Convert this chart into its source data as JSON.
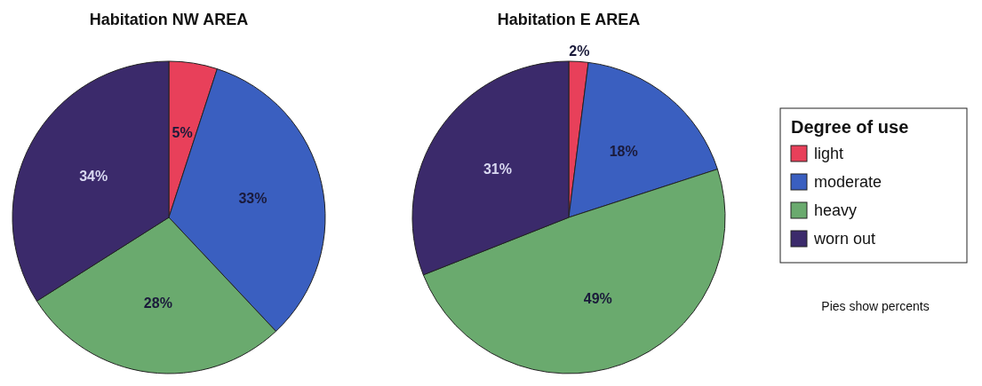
{
  "chart_data": [
    {
      "type": "pie",
      "title": "Habitation NW AREA",
      "categories": [
        null,
        null,
        null,
        null
      ],
      "values": [
        5,
        33,
        28,
        34
      ],
      "colors": [
        "#e8405a",
        "#3a5fc0",
        "#6aaa6e",
        "#3b2a6b"
      ],
      "value_labels": [
        "5%",
        "33%",
        "28%",
        "34%"
      ]
    },
    {
      "type": "pie",
      "title": "Habitation E AREA",
      "categories": [
        "light",
        "moderate",
        "heavy",
        "worn out"
      ],
      "values": [
        2,
        18,
        49,
        31
      ],
      "colors": [
        "#e8405a",
        "#3a5fc0",
        "#6aaa6e",
        "#3b2a6b"
      ],
      "value_labels": [
        "2%",
        "18%",
        "49%",
        "31%"
      ],
      "legend": "right",
      "legend_title": "Degree of use",
      "annotations": [
        "Pies show percents"
      ]
    }
  ]
}
